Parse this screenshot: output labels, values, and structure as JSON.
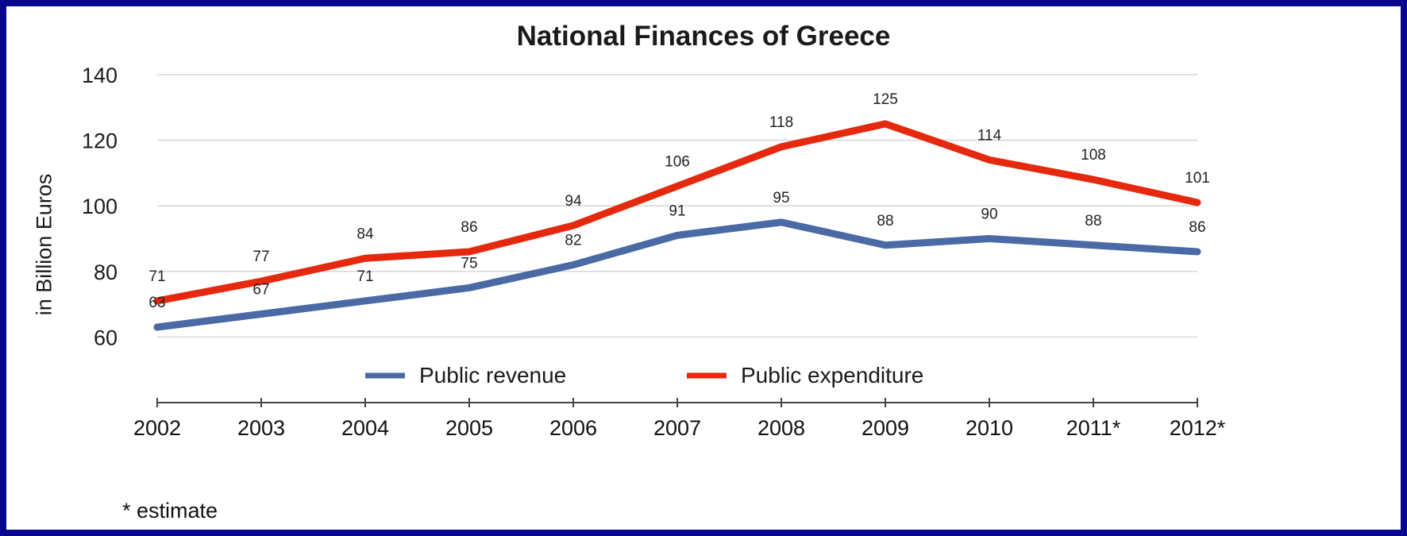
{
  "chart_data": {
    "type": "line",
    "title": "National Finances of Greece",
    "xlabel": "",
    "ylabel": "in Billion Euros",
    "categories": [
      "2002",
      "2003",
      "2004",
      "2005",
      "2006",
      "2007",
      "2008",
      "2009",
      "2010",
      "2011*",
      "2012*"
    ],
    "yticks": [
      60,
      80,
      100,
      120,
      140
    ],
    "ylim": [
      40,
      140
    ],
    "grid": true,
    "legend_position": "bottom-inside",
    "series": [
      {
        "name": "Public revenue",
        "color": "#4a6aa5",
        "values": [
          63,
          67,
          71,
          75,
          82,
          91,
          95,
          88,
          90,
          88,
          86
        ]
      },
      {
        "name": "Public expenditure",
        "color": "#e5290f",
        "values": [
          71,
          77,
          84,
          86,
          94,
          106,
          118,
          125,
          114,
          108,
          101
        ]
      }
    ],
    "footnote": "* estimate"
  }
}
